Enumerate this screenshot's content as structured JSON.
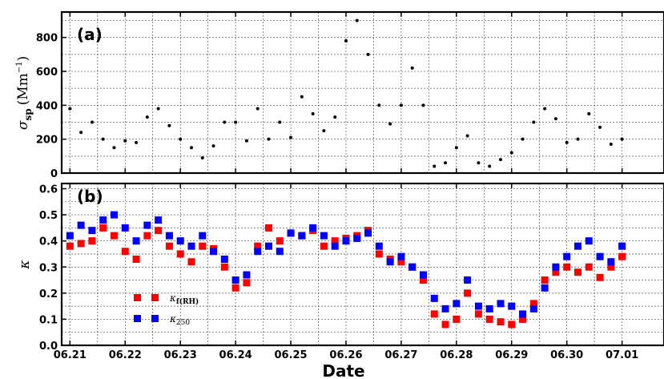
{
  "chart_data": [
    {
      "type": "scatter",
      "panel_label": "(a)",
      "ylabel": "σsp (Mm⁻¹)",
      "ylabel_symbol": "σ",
      "ylabel_subscript": "sp",
      "ylabel_unit_open": "(Mm",
      "ylabel_unit_sup": "−1",
      "ylabel_unit_close": ")",
      "ylim": [
        0,
        950
      ],
      "yticks": [
        "0",
        "200",
        "400",
        "600",
        "800"
      ],
      "ytick_values": [
        0,
        200,
        400,
        600,
        800
      ],
      "grid": true,
      "marker_color": "#000000",
      "series": [
        {
          "values_x": [
            6.21,
            6.212,
            6.214,
            6.216,
            6.218,
            6.22,
            6.222,
            6.224,
            6.226,
            6.228,
            6.23,
            6.232,
            6.234,
            6.236,
            6.238,
            6.24,
            6.242,
            6.244,
            6.246,
            6.248,
            6.25,
            6.252,
            6.254,
            6.256,
            6.258,
            6.26,
            6.262,
            6.264,
            6.266,
            6.268,
            6.27,
            6.272,
            6.274,
            6.276,
            6.278,
            6.28,
            6.282,
            6.284,
            6.286,
            6.288,
            6.29,
            6.292,
            6.294,
            6.296,
            6.298,
            6.3,
            6.302,
            6.304,
            6.306,
            6.308,
            6.31
          ],
          "values_y": [
            380,
            240,
            300,
            200,
            150,
            190,
            180,
            330,
            380,
            280,
            200,
            150,
            90,
            160,
            300,
            300,
            190,
            380,
            200,
            300,
            210,
            450,
            350,
            250,
            330,
            780,
            900,
            700,
            400,
            290,
            400,
            620,
            400,
            40,
            60,
            150,
            220,
            60,
            40,
            80,
            120,
            200,
            300,
            380,
            320,
            180,
            200,
            350,
            270,
            170,
            200
          ]
        }
      ]
    },
    {
      "type": "scatter",
      "panel_label": "(b)",
      "ylabel": "κ",
      "xlabel": "Date",
      "ylim": [
        0,
        0.62
      ],
      "yticks": [
        "0.0",
        "0.1",
        "0.2",
        "0.3",
        "0.4",
        "0.5",
        "0.6"
      ],
      "ytick_values": [
        0,
        0.1,
        0.2,
        0.3,
        0.4,
        0.5,
        0.6
      ],
      "xticks": [
        "06.21",
        "06.22",
        "06.23",
        "06.24",
        "06.25",
        "06.26",
        "06.27",
        "06.28",
        "06.29",
        "06.30",
        "07.01"
      ],
      "xtick_values": [
        6.21,
        6.22,
        6.23,
        6.24,
        6.25,
        6.26,
        6.27,
        6.28,
        6.29,
        6.3,
        6.31
      ],
      "xlim": [
        6.2085,
        6.3176
      ],
      "grid": true,
      "legend_placement": "lower-left",
      "series": [
        {
          "name": "κf(RH)",
          "name_symbol": "κ",
          "name_subscript": "f(RH)",
          "color": "#ff0000",
          "x": [
            6.21,
            6.212,
            6.214,
            6.216,
            6.218,
            6.22,
            6.222,
            6.224,
            6.226,
            6.228,
            6.23,
            6.232,
            6.234,
            6.236,
            6.238,
            6.24,
            6.242,
            6.244,
            6.246,
            6.248,
            6.25,
            6.252,
            6.254,
            6.256,
            6.258,
            6.26,
            6.262,
            6.264,
            6.266,
            6.268,
            6.27,
            6.272,
            6.274,
            6.276,
            6.278,
            6.28,
            6.282,
            6.284,
            6.286,
            6.288,
            6.29,
            6.292,
            6.294,
            6.296,
            6.298,
            6.3,
            6.302,
            6.304,
            6.306,
            6.308,
            6.31
          ],
          "y": [
            0.38,
            0.39,
            0.4,
            0.45,
            0.42,
            0.36,
            0.33,
            0.42,
            0.44,
            0.38,
            0.35,
            0.32,
            0.38,
            0.37,
            0.3,
            0.22,
            0.24,
            0.38,
            0.45,
            0.4,
            0.43,
            0.42,
            0.44,
            0.38,
            0.4,
            0.41,
            0.42,
            0.44,
            0.35,
            0.33,
            0.32,
            0.3,
            0.25,
            0.12,
            0.08,
            0.1,
            0.2,
            0.12,
            0.1,
            0.09,
            0.08,
            0.1,
            0.16,
            0.25,
            0.28,
            0.3,
            0.28,
            0.3,
            0.26,
            0.3,
            0.34
          ]
        },
        {
          "name": "κ250",
          "name_symbol": "κ",
          "name_subscript": "250",
          "color": "#0000ff",
          "x": [
            6.21,
            6.212,
            6.214,
            6.216,
            6.218,
            6.22,
            6.222,
            6.224,
            6.226,
            6.228,
            6.23,
            6.232,
            6.234,
            6.236,
            6.238,
            6.24,
            6.242,
            6.244,
            6.246,
            6.248,
            6.25,
            6.252,
            6.254,
            6.256,
            6.258,
            6.26,
            6.262,
            6.264,
            6.266,
            6.268,
            6.27,
            6.272,
            6.274,
            6.276,
            6.278,
            6.28,
            6.282,
            6.284,
            6.286,
            6.288,
            6.29,
            6.292,
            6.294,
            6.296,
            6.298,
            6.3,
            6.302,
            6.304,
            6.306,
            6.308,
            6.31
          ],
          "y": [
            0.42,
            0.46,
            0.44,
            0.48,
            0.5,
            0.45,
            0.4,
            0.46,
            0.48,
            0.42,
            0.4,
            0.38,
            0.42,
            0.36,
            0.33,
            0.25,
            0.27,
            0.36,
            0.38,
            0.36,
            0.43,
            0.42,
            0.45,
            0.42,
            0.38,
            0.4,
            0.41,
            0.43,
            0.38,
            0.32,
            0.34,
            0.3,
            0.27,
            0.18,
            0.14,
            0.16,
            0.25,
            0.15,
            0.14,
            0.16,
            0.15,
            0.12,
            0.14,
            0.22,
            0.3,
            0.34,
            0.38,
            0.4,
            0.34,
            0.32,
            0.38
          ]
        }
      ]
    }
  ]
}
